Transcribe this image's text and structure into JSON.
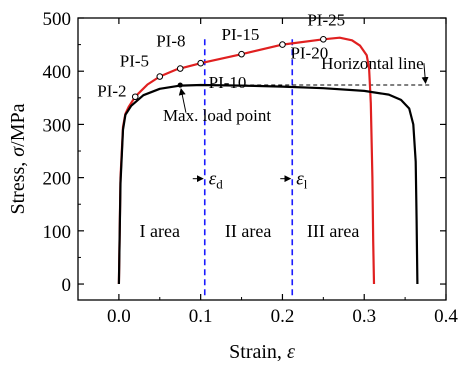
{
  "chart_data": {
    "type": "line",
    "title": "",
    "xlabel_prefix": "Strain, ",
    "xlabel_symbol": "ε",
    "ylabel_prefix": "Stress, ",
    "ylabel_symbol": "σ",
    "ylabel_suffix": "/MPa",
    "xlim": [
      -0.05,
      0.4
    ],
    "ylim": [
      -30,
      500
    ],
    "xticks": [
      0.0,
      0.1,
      0.2,
      0.3,
      0.4
    ],
    "xtick_labels": [
      "0.0",
      "0.1",
      "0.2",
      "0.3",
      "0.4"
    ],
    "yticks": [
      0,
      100,
      200,
      300,
      400,
      500
    ],
    "ytick_labels": [
      "0",
      "100",
      "200",
      "300",
      "400",
      "500"
    ],
    "grid": false,
    "legend": "none",
    "series": [
      {
        "color": "#e02020",
        "points": [
          [
            0.0,
            0
          ],
          [
            0.002,
            200
          ],
          [
            0.005,
            295
          ],
          [
            0.008,
            320
          ],
          [
            0.012,
            333
          ],
          [
            0.02,
            352
          ],
          [
            0.035,
            375
          ],
          [
            0.05,
            390
          ],
          [
            0.07,
            403
          ],
          [
            0.1,
            415
          ],
          [
            0.15,
            432
          ],
          [
            0.2,
            450
          ],
          [
            0.25,
            460
          ],
          [
            0.27,
            463
          ],
          [
            0.285,
            458
          ],
          [
            0.295,
            448
          ],
          [
            0.303,
            430
          ],
          [
            0.306,
            405
          ],
          [
            0.308,
            340
          ],
          [
            0.31,
            200
          ],
          [
            0.311,
            80
          ],
          [
            0.312,
            0
          ]
        ]
      },
      {
        "color": "#000000",
        "points": [
          [
            0.0,
            0
          ],
          [
            0.002,
            190
          ],
          [
            0.005,
            290
          ],
          [
            0.008,
            318
          ],
          [
            0.015,
            335
          ],
          [
            0.03,
            355
          ],
          [
            0.05,
            367
          ],
          [
            0.075,
            373
          ],
          [
            0.1,
            374
          ],
          [
            0.15,
            373
          ],
          [
            0.2,
            371
          ],
          [
            0.25,
            368
          ],
          [
            0.3,
            363
          ],
          [
            0.33,
            356
          ],
          [
            0.345,
            346
          ],
          [
            0.355,
            330
          ],
          [
            0.36,
            300
          ],
          [
            0.363,
            230
          ],
          [
            0.364,
            120
          ],
          [
            0.365,
            0
          ]
        ]
      }
    ],
    "pi_points": [
      {
        "label": "PI-2",
        "x": 0.02,
        "y": 352
      },
      {
        "label": "PI-5",
        "x": 0.05,
        "y": 390
      },
      {
        "label": "PI-8",
        "x": 0.075,
        "y": 405
      },
      {
        "label": "PI-10",
        "x": 0.1,
        "y": 415
      },
      {
        "label": "PI-15",
        "x": 0.15,
        "y": 432
      },
      {
        "label": "PI-20",
        "x": 0.2,
        "y": 450
      },
      {
        "label": "PI-25",
        "x": 0.25,
        "y": 460
      }
    ],
    "max_load_point": {
      "label": "Max. load point",
      "x": 0.075,
      "y": 374
    },
    "horizontal_line": {
      "label": "Horizontal line",
      "y": 374,
      "x_from": 0.075,
      "x_to": 0.38
    },
    "vertical_lines": [
      {
        "symbol": "ε",
        "subscript": "d",
        "x": 0.105
      },
      {
        "symbol": "ε",
        "subscript": "l",
        "x": 0.212
      }
    ],
    "areas": [
      {
        "label": "I area",
        "x": 0.05,
        "y": 100
      },
      {
        "label": "II area",
        "x": 0.158,
        "y": 100
      },
      {
        "label": "III area",
        "x": 0.262,
        "y": 100
      }
    ]
  }
}
